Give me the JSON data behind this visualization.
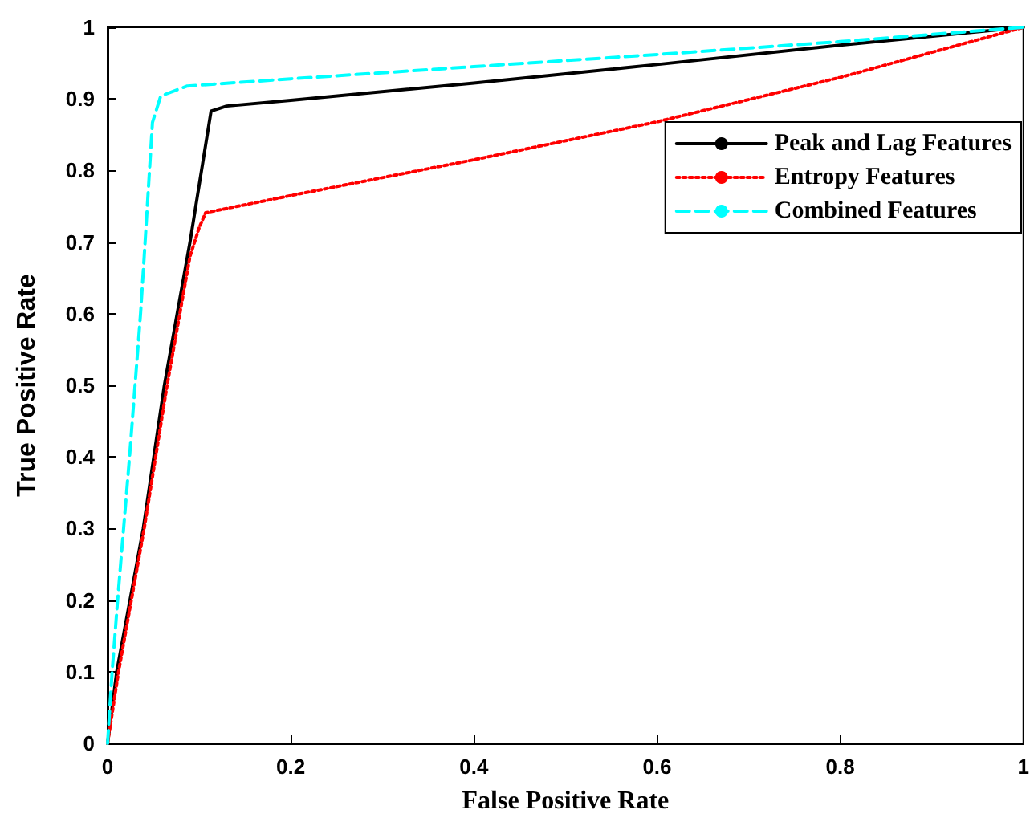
{
  "chart_data": {
    "type": "line",
    "xlabel": "False Positive Rate",
    "ylabel": "True Positive Rate",
    "xlim": [
      0,
      1
    ],
    "ylim": [
      0,
      1
    ],
    "xticks": [
      0,
      0.2,
      0.4,
      0.6,
      0.8,
      1
    ],
    "yticks": [
      0,
      0.1,
      0.2,
      0.3,
      0.4,
      0.5,
      0.6,
      0.7,
      0.8,
      0.9,
      1
    ],
    "grid": false,
    "legend": "top right",
    "marker": "none",
    "series": [
      {
        "name": "Peak and Lag Features",
        "color": "#000000",
        "line_style": "solid",
        "x": [
          0,
          0.01,
          0.039,
          0.062,
          0.09,
          0.113,
          0.13,
          0.2,
          0.4,
          0.6,
          0.8,
          1
        ],
        "values": [
          0,
          0.1,
          0.3,
          0.5,
          0.7,
          0.883,
          0.89,
          0.898,
          0.922,
          0.948,
          0.975,
          1
        ]
      },
      {
        "name": "Entropy Features",
        "color": "#ff0000",
        "line_style": "dotted",
        "x": [
          0,
          0.012,
          0.04,
          0.065,
          0.09,
          0.1,
          0.107,
          0.2,
          0.4,
          0.6,
          0.8,
          0.9,
          1
        ],
        "values": [
          0,
          0.1,
          0.3,
          0.5,
          0.68,
          0.72,
          0.741,
          0.765,
          0.815,
          0.868,
          0.93,
          0.965,
          1
        ]
      },
      {
        "name": "Combined Features",
        "color": "#00ffff",
        "line_style": "dashed",
        "x": [
          0,
          0.005,
          0.011,
          0.024,
          0.03,
          0.036,
          0.04,
          0.049,
          0.058,
          0.087,
          0.2,
          0.4,
          0.6,
          0.8,
          1
        ],
        "values": [
          0,
          0.1,
          0.2,
          0.4,
          0.5,
          0.6,
          0.68,
          0.867,
          0.904,
          0.918,
          0.928,
          0.945,
          0.962,
          0.98,
          1
        ]
      }
    ]
  }
}
